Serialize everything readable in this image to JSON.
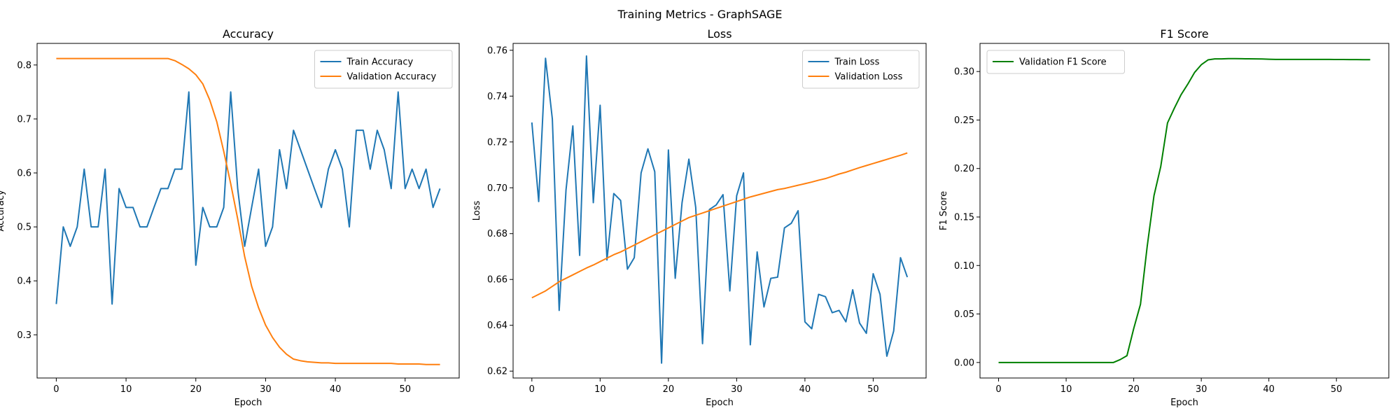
{
  "figure": {
    "title": "Training Metrics - GraphSAGE"
  },
  "chart_data": [
    {
      "type": "line",
      "title": "Accuracy",
      "xlabel": "Epoch",
      "ylabel": "Accuracy",
      "xlim": [
        -2.75,
        57.75
      ],
      "ylim": [
        0.22,
        0.84
      ],
      "xticks": [
        0,
        10,
        20,
        30,
        40,
        50
      ],
      "yticks": [
        0.3,
        0.4,
        0.5,
        0.6,
        0.7,
        0.8
      ],
      "ytick_labels": [
        "0.3",
        "0.4",
        "0.5",
        "0.6",
        "0.7",
        "0.8"
      ],
      "grid": false,
      "legend": "top-right",
      "x": [
        0,
        1,
        2,
        3,
        4,
        5,
        6,
        7,
        8,
        9,
        10,
        11,
        12,
        13,
        14,
        15,
        16,
        17,
        18,
        19,
        20,
        21,
        22,
        23,
        24,
        25,
        26,
        27,
        28,
        29,
        30,
        31,
        32,
        33,
        34,
        35,
        36,
        37,
        38,
        39,
        40,
        41,
        42,
        43,
        44,
        45,
        46,
        47,
        48,
        49,
        50,
        51,
        52,
        53,
        54,
        55
      ],
      "series": [
        {
          "name": "Train Accuracy",
          "color": "#1f77b4",
          "values": [
            0.357,
            0.5,
            0.464,
            0.5,
            0.607,
            0.5,
            0.5,
            0.607,
            0.357,
            0.571,
            0.536,
            0.536,
            0.5,
            0.5,
            0.536,
            0.571,
            0.571,
            0.607,
            0.607,
            0.75,
            0.429,
            0.536,
            0.5,
            0.5,
            0.536,
            0.75,
            0.571,
            0.464,
            0.536,
            0.607,
            0.464,
            0.5,
            0.643,
            0.571,
            0.679,
            0.643,
            0.607,
            0.571,
            0.536,
            0.607,
            0.643,
            0.607,
            0.5,
            0.679,
            0.679,
            0.607,
            0.679,
            0.643,
            0.571,
            0.75,
            0.571,
            0.607,
            0.571,
            0.607,
            0.536,
            0.571
          ]
        },
        {
          "name": "Validation Accuracy",
          "color": "#ff7f0e",
          "values": [
            0.812,
            0.812,
            0.812,
            0.812,
            0.812,
            0.812,
            0.812,
            0.812,
            0.812,
            0.812,
            0.812,
            0.812,
            0.812,
            0.812,
            0.812,
            0.812,
            0.812,
            0.808,
            0.801,
            0.793,
            0.782,
            0.765,
            0.735,
            0.695,
            0.64,
            0.58,
            0.515,
            0.445,
            0.39,
            0.35,
            0.318,
            0.295,
            0.277,
            0.264,
            0.255,
            0.252,
            0.25,
            0.249,
            0.248,
            0.248,
            0.247,
            0.247,
            0.247,
            0.247,
            0.247,
            0.247,
            0.247,
            0.247,
            0.247,
            0.246,
            0.246,
            0.246,
            0.246,
            0.245,
            0.245,
            0.245
          ]
        }
      ]
    },
    {
      "type": "line",
      "title": "Loss",
      "xlabel": "Epoch",
      "ylabel": "Loss",
      "xlim": [
        -2.75,
        57.75
      ],
      "ylim": [
        0.617,
        0.763
      ],
      "xticks": [
        0,
        10,
        20,
        30,
        40,
        50
      ],
      "yticks": [
        0.62,
        0.64,
        0.66,
        0.68,
        0.7,
        0.72,
        0.74,
        0.76
      ],
      "ytick_labels": [
        "0.62",
        "0.64",
        "0.66",
        "0.68",
        "0.70",
        "0.72",
        "0.74",
        "0.76"
      ],
      "grid": false,
      "legend": "top-right",
      "x": [
        0,
        1,
        2,
        3,
        4,
        5,
        6,
        7,
        8,
        9,
        10,
        11,
        12,
        13,
        14,
        15,
        16,
        17,
        18,
        19,
        20,
        21,
        22,
        23,
        24,
        25,
        26,
        27,
        28,
        29,
        30,
        31,
        32,
        33,
        34,
        35,
        36,
        37,
        38,
        39,
        40,
        41,
        42,
        43,
        44,
        45,
        46,
        47,
        48,
        49,
        50,
        51,
        52,
        53,
        54,
        55
      ],
      "series": [
        {
          "name": "Train Loss",
          "color": "#1f77b4",
          "values": [
            0.7285,
            0.694,
            0.7565,
            0.73,
            0.6465,
            0.699,
            0.727,
            0.6705,
            0.7575,
            0.6935,
            0.736,
            0.6685,
            0.6975,
            0.6945,
            0.6645,
            0.6695,
            0.7065,
            0.717,
            0.707,
            0.6235,
            0.7165,
            0.6605,
            0.6935,
            0.7125,
            0.6915,
            0.632,
            0.6905,
            0.6925,
            0.697,
            0.655,
            0.6965,
            0.7065,
            0.6315,
            0.672,
            0.648,
            0.6605,
            0.661,
            0.6825,
            0.6845,
            0.69,
            0.6415,
            0.6385,
            0.6535,
            0.6525,
            0.6455,
            0.6465,
            0.6415,
            0.6555,
            0.641,
            0.6365,
            0.6625,
            0.6535,
            0.6265,
            0.6375,
            0.6695,
            0.661
          ]
        },
        {
          "name": "Validation Loss",
          "color": "#ff7f0e",
          "values": [
            0.652,
            0.6535,
            0.655,
            0.657,
            0.659,
            0.6605,
            0.662,
            0.6635,
            0.665,
            0.6663,
            0.6678,
            0.6693,
            0.6708,
            0.672,
            0.6735,
            0.675,
            0.6765,
            0.678,
            0.6795,
            0.681,
            0.6825,
            0.684,
            0.6855,
            0.687,
            0.688,
            0.689,
            0.69,
            0.691,
            0.692,
            0.693,
            0.694,
            0.695,
            0.696,
            0.6968,
            0.6976,
            0.6984,
            0.6992,
            0.6997,
            0.7004,
            0.7011,
            0.7018,
            0.7025,
            0.7033,
            0.704,
            0.705,
            0.706,
            0.7068,
            0.7078,
            0.7088,
            0.7097,
            0.7106,
            0.7115,
            0.7124,
            0.7133,
            0.7142,
            0.7152
          ]
        }
      ]
    },
    {
      "type": "line",
      "title": "F1 Score",
      "xlabel": "Epoch",
      "ylabel": "F1 Score",
      "xlim": [
        -2.75,
        57.75
      ],
      "ylim": [
        -0.016,
        0.329
      ],
      "xticks": [
        0,
        10,
        20,
        30,
        40,
        50
      ],
      "yticks": [
        0.0,
        0.05,
        0.1,
        0.15,
        0.2,
        0.25,
        0.3
      ],
      "ytick_labels": [
        "0.00",
        "0.05",
        "0.10",
        "0.15",
        "0.20",
        "0.25",
        "0.30"
      ],
      "grid": false,
      "legend": "top-left",
      "x": [
        0,
        1,
        2,
        3,
        4,
        5,
        6,
        7,
        8,
        9,
        10,
        11,
        12,
        13,
        14,
        15,
        16,
        17,
        18,
        19,
        20,
        21,
        22,
        23,
        24,
        25,
        26,
        27,
        28,
        29,
        30,
        31,
        32,
        33,
        34,
        35,
        36,
        37,
        38,
        39,
        40,
        41,
        42,
        43,
        44,
        45,
        46,
        47,
        48,
        49,
        50,
        51,
        52,
        53,
        54,
        55
      ],
      "series": [
        {
          "name": "Validation F1 Score",
          "color": "#008000",
          "values": [
            0,
            0,
            0,
            0,
            0,
            0,
            0,
            0,
            0,
            0,
            0,
            0,
            0,
            0,
            0,
            0,
            0,
            0,
            0.003,
            0.007,
            0.035,
            0.06,
            0.12,
            0.172,
            0.202,
            0.247,
            0.262,
            0.276,
            0.287,
            0.299,
            0.307,
            0.312,
            0.313,
            0.313,
            0.3133,
            0.3133,
            0.3132,
            0.3131,
            0.313,
            0.3129,
            0.3127,
            0.3125,
            0.3125,
            0.3125,
            0.3125,
            0.3125,
            0.3125,
            0.3125,
            0.3125,
            0.3125,
            0.3124,
            0.3124,
            0.3123,
            0.3123,
            0.3122,
            0.3122
          ]
        }
      ]
    }
  ]
}
